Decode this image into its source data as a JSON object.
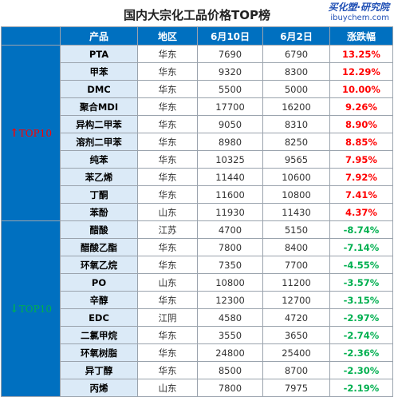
{
  "title": "国内大宗化工品价格TOP榜",
  "logo": {
    "cn": "买化塑·研究院",
    "en": "ibuychem.com"
  },
  "colors": {
    "header_bg": "#0070c0",
    "name_bg": "#dbeaf7",
    "up": "#ff0000",
    "down": "#00b050"
  },
  "headers": [
    "产品",
    "地区",
    "6月10日",
    "6月2日",
    "涨跌幅"
  ],
  "groups": {
    "up_label": "TOP10",
    "up_arrow": "↑",
    "down_label": "TOP10",
    "down_arrow": "↓"
  },
  "chart_data": {
    "type": "table",
    "title": "国内大宗化工品价格TOP榜",
    "columns": [
      "产品",
      "地区",
      "6月10日",
      "6月2日",
      "涨跌幅"
    ],
    "top_up": [
      {
        "product": "PTA",
        "region": "华东",
        "jun10": "7690",
        "jun2": "6790",
        "change": "13.25%"
      },
      {
        "product": "甲苯",
        "region": "华东",
        "jun10": "9320",
        "jun2": "8300",
        "change": "12.29%"
      },
      {
        "product": "DMC",
        "region": "华东",
        "jun10": "5500",
        "jun2": "5000",
        "change": "10.00%"
      },
      {
        "product": "聚合MDI",
        "region": "华东",
        "jun10": "17700",
        "jun2": "16200",
        "change": "9.26%"
      },
      {
        "product": "异构二甲苯",
        "region": "华东",
        "jun10": "9050",
        "jun2": "8310",
        "change": "8.90%"
      },
      {
        "product": "溶剂二甲苯",
        "region": "华东",
        "jun10": "8980",
        "jun2": "8250",
        "change": "8.85%"
      },
      {
        "product": "纯苯",
        "region": "华东",
        "jun10": "10325",
        "jun2": "9565",
        "change": "7.95%"
      },
      {
        "product": "苯乙烯",
        "region": "华东",
        "jun10": "11440",
        "jun2": "10600",
        "change": "7.92%"
      },
      {
        "product": "丁酮",
        "region": "华东",
        "jun10": "11600",
        "jun2": "10800",
        "change": "7.41%"
      },
      {
        "product": "苯酚",
        "region": "山东",
        "jun10": "11930",
        "jun2": "11430",
        "change": "4.37%"
      }
    ],
    "top_down": [
      {
        "product": "醋酸",
        "region": "江苏",
        "jun10": "4700",
        "jun2": "5150",
        "change": "-8.74%"
      },
      {
        "product": "醋酸乙酯",
        "region": "华东",
        "jun10": "7800",
        "jun2": "8400",
        "change": "-7.14%"
      },
      {
        "product": "环氧乙烷",
        "region": "华东",
        "jun10": "7350",
        "jun2": "7700",
        "change": "-4.55%"
      },
      {
        "product": "PO",
        "region": "山东",
        "jun10": "10800",
        "jun2": "11200",
        "change": "-3.57%"
      },
      {
        "product": "辛醇",
        "region": "华东",
        "jun10": "12300",
        "jun2": "12700",
        "change": "-3.15%"
      },
      {
        "product": "EDC",
        "region": "江阴",
        "jun10": "4580",
        "jun2": "4720",
        "change": "-2.97%"
      },
      {
        "product": "二氯甲烷",
        "region": "华东",
        "jun10": "3550",
        "jun2": "3650",
        "change": "-2.74%"
      },
      {
        "product": "环氧树脂",
        "region": "华东",
        "jun10": "24800",
        "jun2": "25400",
        "change": "-2.36%"
      },
      {
        "product": "异丁醇",
        "region": "华东",
        "jun10": "8500",
        "jun2": "8700",
        "change": "-2.30%"
      },
      {
        "product": "丙烯",
        "region": "山东",
        "jun10": "7800",
        "jun2": "7975",
        "change": "-2.19%"
      }
    ]
  }
}
